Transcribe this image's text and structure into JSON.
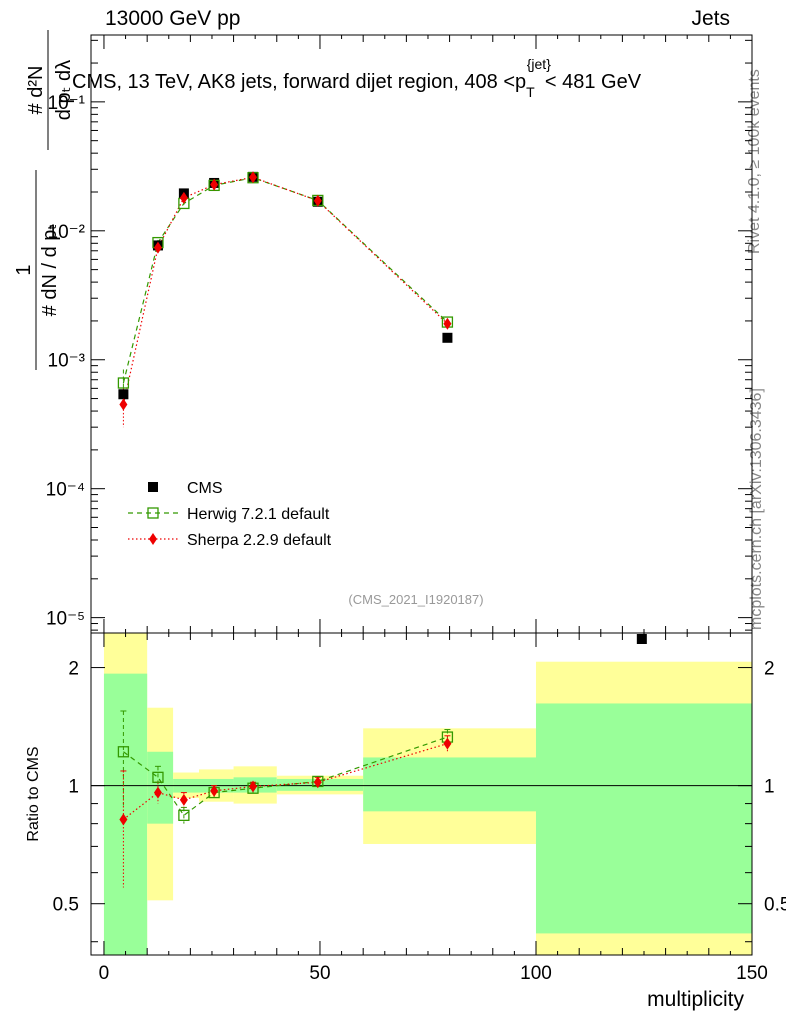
{
  "header": {
    "beam_label": "13000 GeV pp",
    "category_label": "Jets"
  },
  "side_labels": {
    "rivet": "Rivet 4.1.0, ≥ 100k events",
    "mcplots": "mcplots.cern.ch [arXiv:1306.3436]"
  },
  "colors": {
    "data": "#000000",
    "herwig": "#339900",
    "sherpa": "#ee0000",
    "band_inner": "#99ff99",
    "band_outer": "#ffff99",
    "watermark": "#999999"
  },
  "chart_data": [
    {
      "panel": "main",
      "type": "scatter",
      "title_prefix": "CMS, 13 TeV, AK8 jets, forward dijet region, 408 <",
      "title_sym": "p",
      "title_sub": "T",
      "title_sup": "{jet}",
      "title_suffix": "< 481 GeV",
      "ylabel_num": "#   d²N",
      "ylabel_den": "d pₜ dλ",
      "ylabel_pre": "1",
      "ylabel_pre_den": "#   dN / d pₜ",
      "y_scale": "log",
      "ylim": [
        7.6e-06,
        0.33
      ],
      "xlim": [
        -3,
        150
      ],
      "y_tick_labels": [
        "10⁻⁵",
        "10⁻⁴",
        "10⁻³",
        "10⁻²",
        "10⁻¹"
      ],
      "y_tick_values": [
        1e-05,
        0.0001,
        0.001,
        0.01,
        0.1
      ],
      "watermark": "(CMS_2021_I1920187)",
      "legend_position": "lower-left",
      "series": [
        {
          "name": "CMS",
          "marker": "filled-square",
          "x": [
            4.5,
            12.5,
            18.5,
            25.5,
            34.5,
            49.5,
            79.5,
            124.5
          ],
          "y": [
            0.00054,
            0.0077,
            0.0195,
            0.0235,
            0.0262,
            0.0168,
            0.00148,
            6.8e-06
          ]
        },
        {
          "name": "Herwig 7.2.1 default",
          "marker": "open-square",
          "line": "dashed",
          "x": [
            4.5,
            12.5,
            18.5,
            25.5,
            34.5,
            49.5,
            79.5
          ],
          "y": [
            0.00066,
            0.0081,
            0.0163,
            0.0225,
            0.0258,
            0.0172,
            0.00196
          ],
          "y_err": [
            0.00018,
            0.0004,
            0.0008,
            0.0006,
            0.0006,
            0.0005,
            0.00012
          ]
        },
        {
          "name": "Sherpa 2.2.9 default",
          "marker": "diamond",
          "line": "dotted",
          "x": [
            4.5,
            12.5,
            18.5,
            25.5,
            34.5,
            49.5,
            79.5
          ],
          "y": [
            0.00045,
            0.0074,
            0.018,
            0.0228,
            0.026,
            0.0171,
            0.0019
          ],
          "y_err": [
            0.00015,
            0.0005,
            0.0009,
            0.0006,
            0.0006,
            0.0005,
            0.0001
          ]
        }
      ]
    },
    {
      "panel": "ratio",
      "type": "scatter",
      "ylabel": "Ratio to CMS",
      "xlabel": "multiplicity",
      "y_scale": "log",
      "ylim": [
        0.37,
        2.45
      ],
      "xlim": [
        -3,
        150
      ],
      "x_ticks": [
        0,
        50,
        100,
        150
      ],
      "y_ticks": [
        0.5,
        1,
        2
      ],
      "reference_line": 1,
      "bands": {
        "bins": [
          [
            0,
            10
          ],
          [
            10,
            16
          ],
          [
            16,
            22
          ],
          [
            22,
            30
          ],
          [
            30,
            40
          ],
          [
            40,
            60
          ],
          [
            60,
            100
          ],
          [
            100,
            150
          ]
        ],
        "inner": [
          [
            0.37,
            1.93
          ],
          [
            0.8,
            1.22
          ],
          [
            0.96,
            1.04
          ],
          [
            0.96,
            1.04
          ],
          [
            0.96,
            1.05
          ],
          [
            0.97,
            1.04
          ],
          [
            0.86,
            1.18
          ],
          [
            0.42,
            1.62
          ]
        ],
        "outer": [
          [
            0.37,
            2.45
          ],
          [
            0.51,
            1.58
          ],
          [
            0.93,
            1.08
          ],
          [
            0.91,
            1.1
          ],
          [
            0.9,
            1.12
          ],
          [
            0.95,
            1.06
          ],
          [
            0.71,
            1.4
          ],
          [
            0.37,
            2.07
          ]
        ]
      },
      "series": [
        {
          "name": "Herwig 7.2.1 default",
          "x": [
            4.5,
            12.5,
            18.5,
            25.5,
            34.5,
            49.5,
            79.5
          ],
          "y": [
            1.22,
            1.05,
            0.84,
            0.96,
            0.985,
            1.025,
            1.33
          ],
          "y_err": [
            0.33,
            0.07,
            0.04,
            0.03,
            0.025,
            0.03,
            0.06
          ]
        },
        {
          "name": "Sherpa 2.2.9 default",
          "x": [
            4.5,
            12.5,
            18.5,
            25.5,
            34.5,
            49.5,
            79.5
          ],
          "y": [
            0.82,
            0.96,
            0.92,
            0.97,
            0.995,
            1.02,
            1.28
          ],
          "y_err": [
            0.27,
            0.06,
            0.04,
            0.03,
            0.025,
            0.03,
            0.06
          ]
        }
      ]
    }
  ]
}
